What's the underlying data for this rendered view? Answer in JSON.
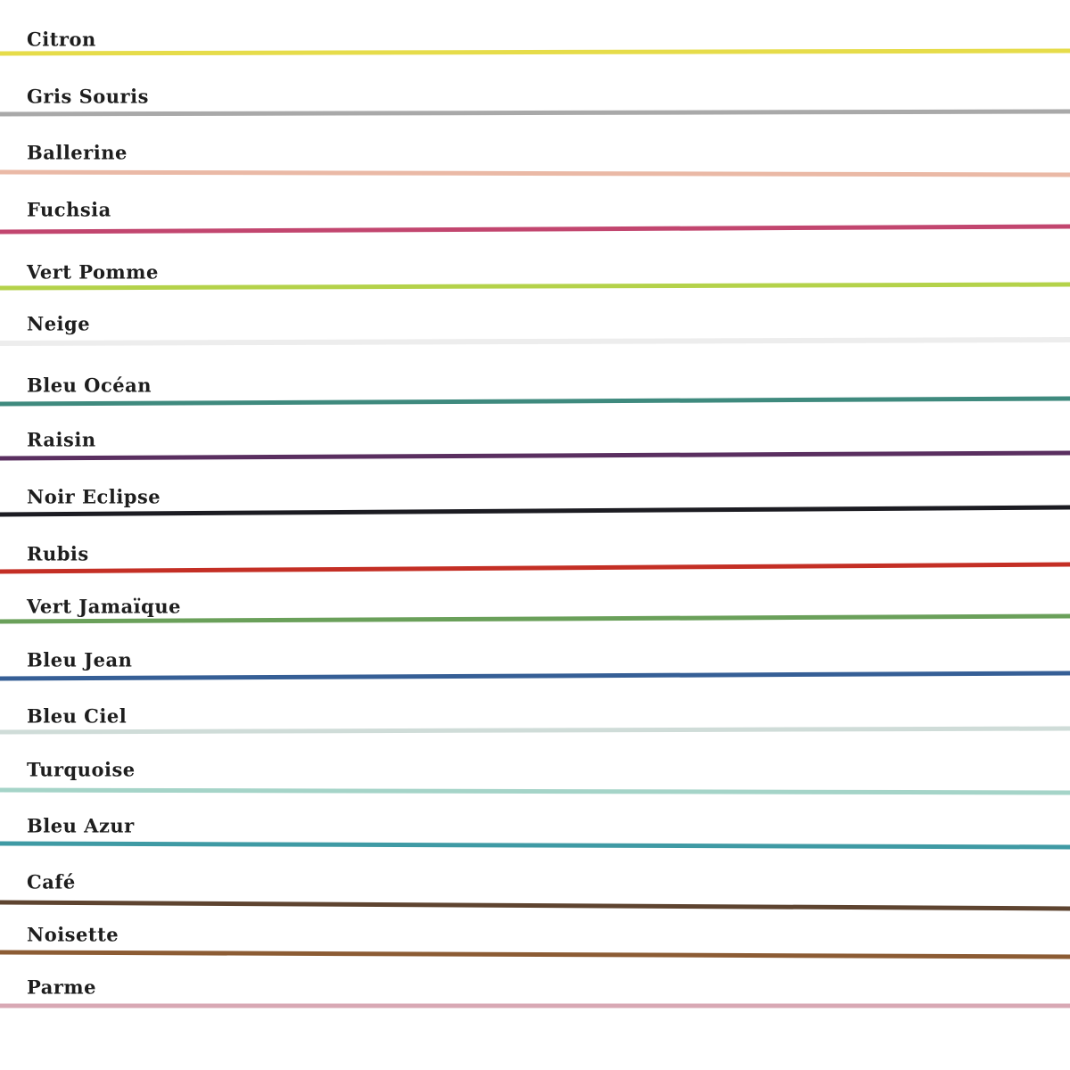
{
  "cords": [
    {
      "name": "Citron",
      "color": "#e6dc4a"
    },
    {
      "name": "Gris Souris",
      "color": "#a9a9a9"
    },
    {
      "name": "Ballerine",
      "color": "#eab9a6"
    },
    {
      "name": "Fuchsia",
      "color": "#c2466f"
    },
    {
      "name": "Vert Pomme",
      "color": "#b4d24a"
    },
    {
      "name": "Neige",
      "color": "#ededed"
    },
    {
      "name": "Bleu Océan",
      "color": "#3f8a7e"
    },
    {
      "name": "Raisin",
      "color": "#5a2f60"
    },
    {
      "name": "Noir Eclipse",
      "color": "#1c1c22"
    },
    {
      "name": "Rubis",
      "color": "#c42f25"
    },
    {
      "name": "Vert Jamaïque",
      "color": "#6aa05a"
    },
    {
      "name": "Bleu Jean",
      "color": "#365f96"
    },
    {
      "name": "Bleu Ciel",
      "color": "#cfdcd8"
    },
    {
      "name": "Turquoise",
      "color": "#a5d4c8"
    },
    {
      "name": "Bleu Azur",
      "color": "#3f9aa4"
    },
    {
      "name": "Café",
      "color": "#5e4430"
    },
    {
      "name": "Noisette",
      "color": "#8c5c34"
    },
    {
      "name": "Parme",
      "color": "#d8a8b4"
    }
  ]
}
